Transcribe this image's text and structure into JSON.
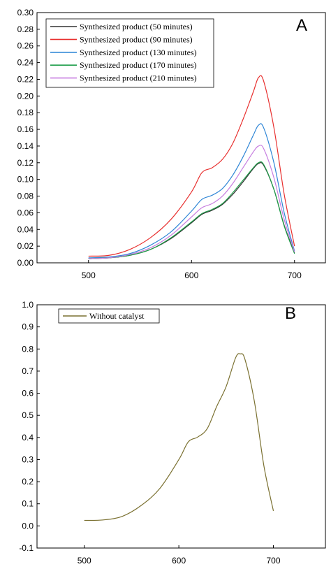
{
  "chart_data": [
    {
      "type": "line",
      "panel_label": "A",
      "xlim": [
        450,
        730
      ],
      "ylim": [
        0.0,
        0.3
      ],
      "x_ticks": [
        500,
        600,
        700
      ],
      "y_ticks": [
        0.0,
        0.02,
        0.04,
        0.06,
        0.08,
        0.1,
        0.12,
        0.14,
        0.16,
        0.18,
        0.2,
        0.22,
        0.24,
        0.26,
        0.28,
        0.3
      ],
      "legend_position": "top-left",
      "x": [
        500,
        520,
        540,
        560,
        580,
        600,
        610,
        620,
        630,
        640,
        650,
        660,
        665,
        670,
        680,
        690,
        700
      ],
      "series": [
        {
          "name": "Synthesized product (50 minutes)",
          "color": "#333333",
          "values": [
            0.005,
            0.006,
            0.009,
            0.016,
            0.029,
            0.048,
            0.058,
            0.063,
            0.07,
            0.082,
            0.097,
            0.113,
            0.119,
            0.117,
            0.088,
            0.045,
            0.012
          ]
        },
        {
          "name": "Synthesized product (90 minutes)",
          "color": "#e8302f",
          "values": [
            0.008,
            0.009,
            0.016,
            0.03,
            0.052,
            0.085,
            0.108,
            0.114,
            0.124,
            0.143,
            0.172,
            0.205,
            0.222,
            0.218,
            0.162,
            0.082,
            0.02
          ]
        },
        {
          "name": "Synthesized product (130 minutes)",
          "color": "#2f86d6",
          "values": [
            0.006,
            0.007,
            0.011,
            0.021,
            0.037,
            0.062,
            0.076,
            0.081,
            0.089,
            0.105,
            0.127,
            0.153,
            0.165,
            0.162,
            0.12,
            0.06,
            0.014
          ]
        },
        {
          "name": "Synthesized product (170 minutes)",
          "color": "#1f9e4a",
          "values": [
            0.005,
            0.006,
            0.009,
            0.016,
            0.03,
            0.049,
            0.059,
            0.064,
            0.071,
            0.084,
            0.099,
            0.114,
            0.12,
            0.118,
            0.088,
            0.044,
            0.011
          ]
        },
        {
          "name": "Synthesized product (210 minutes)",
          "color": "#c77ee0",
          "values": [
            0.005,
            0.006,
            0.01,
            0.018,
            0.033,
            0.055,
            0.066,
            0.071,
            0.08,
            0.095,
            0.114,
            0.133,
            0.14,
            0.137,
            0.102,
            0.052,
            0.013
          ]
        }
      ]
    },
    {
      "type": "line",
      "panel_label": "B",
      "xlim": [
        450,
        755
      ],
      "ylim": [
        -0.1,
        1.0
      ],
      "x_ticks": [
        500,
        600,
        700
      ],
      "y_ticks": [
        -0.1,
        0.0,
        0.1,
        0.2,
        0.3,
        0.4,
        0.5,
        0.6,
        0.7,
        0.8,
        0.9,
        1.0
      ],
      "legend_position": "top-left",
      "x": [
        500,
        520,
        540,
        560,
        580,
        600,
        610,
        620,
        630,
        640,
        650,
        660,
        665,
        670,
        680,
        690,
        700
      ],
      "series": [
        {
          "name": "Without catalyst",
          "color": "#7a7030",
          "values": [
            0.025,
            0.027,
            0.043,
            0.092,
            0.17,
            0.3,
            0.38,
            0.402,
            0.44,
            0.54,
            0.63,
            0.76,
            0.778,
            0.752,
            0.56,
            0.27,
            0.068
          ]
        }
      ]
    }
  ]
}
